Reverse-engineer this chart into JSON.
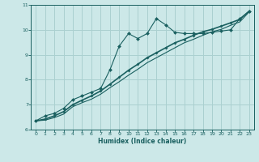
{
  "title": "",
  "xlabel": "Humidex (Indice chaleur)",
  "bg_color": "#cce8e8",
  "grid_color": "#aad0d0",
  "line_color": "#1a6060",
  "xlim": [
    -0.5,
    23.5
  ],
  "ylim": [
    6,
    11
  ],
  "yticks": [
    6,
    7,
    8,
    9,
    10,
    11
  ],
  "xticks": [
    0,
    1,
    2,
    3,
    4,
    5,
    6,
    7,
    8,
    9,
    10,
    11,
    12,
    13,
    14,
    15,
    16,
    17,
    18,
    19,
    20,
    21,
    22,
    23
  ],
  "line1_x": [
    0,
    1,
    2,
    3,
    4,
    5,
    6,
    7,
    8,
    9,
    10,
    11,
    12,
    13,
    14,
    15,
    16,
    17,
    18,
    19,
    20,
    21,
    22,
    23
  ],
  "line1_y": [
    6.35,
    6.55,
    6.65,
    6.85,
    7.2,
    7.35,
    7.5,
    7.65,
    8.4,
    9.35,
    9.85,
    9.65,
    9.85,
    10.45,
    10.2,
    9.9,
    9.85,
    9.85,
    9.85,
    9.9,
    9.95,
    10.0,
    10.45,
    10.75
  ],
  "line2_x": [
    0,
    1,
    2,
    3,
    4,
    5,
    6,
    7,
    8,
    9,
    10,
    11,
    12,
    13,
    14,
    15,
    16,
    17,
    18,
    19,
    20,
    21,
    22,
    23
  ],
  "line2_y": [
    6.35,
    6.42,
    6.55,
    6.72,
    7.0,
    7.18,
    7.35,
    7.55,
    7.82,
    8.1,
    8.38,
    8.62,
    8.88,
    9.08,
    9.28,
    9.48,
    9.62,
    9.78,
    9.92,
    10.02,
    10.15,
    10.28,
    10.42,
    10.75
  ],
  "line3_x": [
    0,
    1,
    2,
    3,
    4,
    5,
    6,
    7,
    8,
    9,
    10,
    11,
    12,
    13,
    14,
    15,
    16,
    17,
    18,
    19,
    20,
    21,
    22,
    23
  ],
  "line3_y": [
    6.35,
    6.38,
    6.48,
    6.62,
    6.92,
    7.08,
    7.22,
    7.42,
    7.68,
    7.92,
    8.18,
    8.42,
    8.68,
    8.88,
    9.08,
    9.28,
    9.48,
    9.62,
    9.78,
    9.92,
    10.02,
    10.18,
    10.32,
    10.72
  ]
}
